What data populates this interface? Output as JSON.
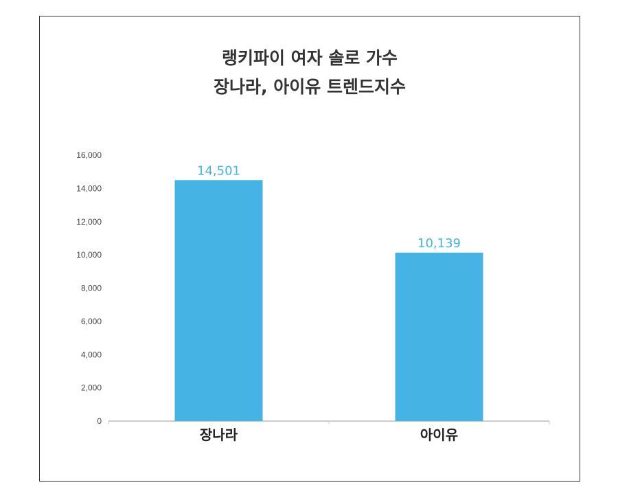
{
  "chart_data": {
    "type": "bar",
    "title_lines": [
      "랭키파이 여자 솔로 가수",
      "장나라, 아이유 트렌드지수"
    ],
    "categories": [
      "장나라",
      "아이유"
    ],
    "values": [
      14501,
      10139
    ],
    "value_labels": [
      "14,501",
      "10,139"
    ],
    "yticks": [
      "0",
      "2,000",
      "4,000",
      "6,000",
      "8,000",
      "10,000",
      "12,000",
      "14,000",
      "16,000"
    ],
    "ylim": [
      0,
      16000
    ],
    "xlabel": "",
    "ylabel": "",
    "grid": false,
    "bar_color": "#45b3e3",
    "label_color": "#45b3e3",
    "axis_color": "#999999"
  }
}
